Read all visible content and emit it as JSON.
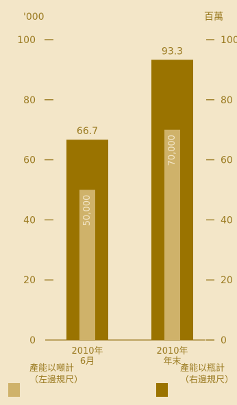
{
  "chart_data": {
    "type": "bar",
    "left_axis_unit": "'000",
    "right_axis_unit": "百萬",
    "ylim": [
      0,
      100
    ],
    "yticks": [
      0,
      20,
      40,
      60,
      80,
      100
    ],
    "categories": [
      {
        "line1": "2010年",
        "line2": "6月"
      },
      {
        "line1": "2010年",
        "line2": "年末"
      }
    ],
    "series": [
      {
        "name": "產能以瓶計",
        "values": [
          66.7,
          93.3
        ],
        "labels": [
          "66.7",
          "93.3"
        ],
        "color": "#9a7300"
      },
      {
        "name": "產能以噸計",
        "values": [
          50,
          70
        ],
        "labels": [
          "50,000",
          "70,000"
        ],
        "color": "#cfb26a"
      }
    ],
    "colors": {
      "axis": "#9a7a20",
      "background": "#f3e6c8",
      "bar_label": "#f3e6c8"
    },
    "grid": false
  },
  "legend": [
    {
      "line1": "產能以噸計",
      "line2": "（左邊規尺）",
      "color": "#cfb26a"
    },
    {
      "line1": "產能以瓶計",
      "line2": "（右邊規尺）",
      "color": "#9a7300"
    }
  ]
}
